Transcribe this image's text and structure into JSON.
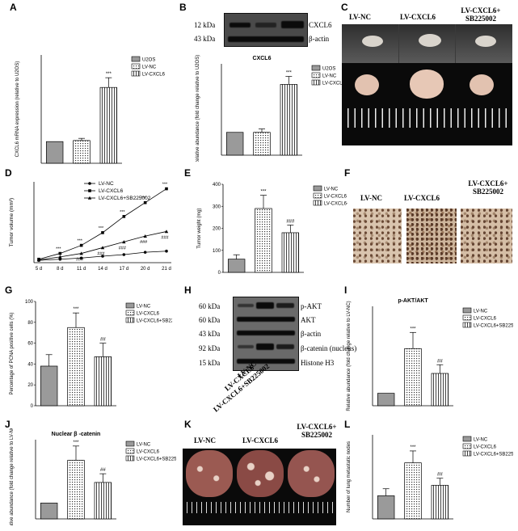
{
  "panel_letters": [
    "A",
    "B",
    "C",
    "D",
    "E",
    "F",
    "G",
    "H",
    "I",
    "J",
    "K",
    "L"
  ],
  "colors": {
    "bar_fill": "#ffffff",
    "bar_stroke": "#000000",
    "hatch": "#000000"
  },
  "legend_patterns": [
    "gray",
    "dotted",
    "vertical-lines"
  ],
  "panel_B_blot": {
    "markers": [
      "12 kDa",
      "43 kDa"
    ],
    "bands": [
      "CXCL6",
      "β-actin"
    ]
  },
  "panel_C": {
    "groups": [
      "LV-NC",
      "LV-CXCL6",
      "LV-CXCL6+ SB225002"
    ]
  },
  "panel_F": {
    "groups": [
      "LV-NC",
      "LV-CXCL6",
      "LV-CXCL6+ SB225002"
    ]
  },
  "panel_H_blot": {
    "markers": [
      "60 kDa",
      "60 kDa",
      "43 kDa",
      "92 kDa",
      "15 kDa"
    ],
    "bands": [
      "p-AKT",
      "AKT",
      "β-actin",
      "β-catenin (nucleus)",
      "Histone H3"
    ],
    "lanes": [
      "LV-NC",
      "LV-CXCL6",
      "LV-CXCL6+SB225002"
    ]
  },
  "panel_K": {
    "groups": [
      "LV-NC",
      "LV-CXCL6",
      "LV-CXCL6+ SB225002"
    ]
  },
  "chart_data": [
    {
      "panel": "A",
      "type": "bar",
      "categories": [
        "U2OS",
        "LV-NC",
        "LV-CXCL6"
      ],
      "values": [
        1.0,
        1.05,
        3.5
      ],
      "errors": [
        0,
        0.1,
        0.45
      ],
      "ylabel": "CXCL6 mRNA expression (relative to U2OS)",
      "ylim": [
        0,
        5
      ],
      "annotations": [
        "",
        "",
        "***"
      ],
      "legend": [
        "U2OS",
        "LV-NC",
        "LV-CXCL6"
      ],
      "legend_position": "top-right"
    },
    {
      "panel": "B",
      "type": "bar",
      "title": "CXCL6",
      "categories": [
        "U2OS",
        "LV-NC",
        "LV-CXCL6"
      ],
      "values": [
        1.0,
        1.0,
        3.1
      ],
      "errors": [
        0,
        0.15,
        0.35
      ],
      "ylabel": "Relative abundance (fold change relative to U2OS)",
      "ylim": [
        0,
        4
      ],
      "annotations": [
        "",
        "",
        "***"
      ],
      "legend": [
        "U2OS",
        "LV-NC",
        "LV-CXCL6"
      ],
      "legend_position": "top-right"
    },
    {
      "panel": "D",
      "type": "line",
      "x": [
        "5 d",
        "8 d",
        "11 d",
        "14 d",
        "17 d",
        "20 d",
        "21 d"
      ],
      "ylabel": "Tumor volume (mm³)",
      "ylim": [
        0,
        350
      ],
      "series": [
        {
          "name": "LV-NC",
          "values": [
            10,
            15,
            20,
            28,
            35,
            45,
            50
          ],
          "marker": "circle"
        },
        {
          "name": "LV-CXCL6",
          "values": [
            15,
            40,
            75,
            130,
            200,
            260,
            320
          ],
          "marker": "square",
          "annotations": [
            "",
            "***",
            "***",
            "***",
            "***",
            "***",
            "***"
          ]
        },
        {
          "name": "LV-CXCL6+SB225002",
          "values": [
            12,
            25,
            40,
            65,
            90,
            115,
            135
          ],
          "marker": "triangle",
          "annotations": [
            "",
            "",
            "###",
            "###",
            "###",
            "###",
            "###"
          ]
        }
      ],
      "legend_position": "top-left"
    },
    {
      "panel": "E",
      "type": "bar",
      "categories": [
        "LV-NC",
        "LV-CXCL6",
        "LV-CXCL6+SB225002"
      ],
      "values": [
        60,
        290,
        180
      ],
      "errors": [
        20,
        60,
        35
      ],
      "ylabel": "Tumor weight (mg)",
      "ylim": [
        0,
        400
      ],
      "yticks": [
        0,
        100,
        200,
        300,
        400
      ],
      "annotations": [
        "",
        "***",
        "###"
      ],
      "legend": [
        "LV-NC",
        "LV-CXCL6",
        "LV-CXCL6+SB225002"
      ],
      "legend_position": "top-right"
    },
    {
      "panel": "G",
      "type": "bar",
      "categories": [
        "LV-NC",
        "LV-CXCL6",
        "LV-CXCL6+SB225002"
      ],
      "values": [
        38,
        75,
        47
      ],
      "errors": [
        11,
        14,
        13
      ],
      "ylabel": "Percentage of PCNA positive cells (%)",
      "ylim": [
        0,
        100
      ],
      "yticks": [
        0,
        20,
        40,
        60,
        80,
        100
      ],
      "annotations": [
        "",
        "***",
        "##"
      ],
      "legend": [
        "LV-NC",
        "LV-CXCL6",
        "LV-CXCL6+SB225002"
      ],
      "legend_position": "top-right"
    },
    {
      "panel": "I",
      "type": "bar",
      "title": "p-AKT/AKT",
      "categories": [
        "LV-NC",
        "LV-CXCL6",
        "LV-CXCL6+SB225002"
      ],
      "values": [
        1.0,
        4.6,
        2.6
      ],
      "errors": [
        0,
        1.3,
        0.7
      ],
      "ylabel": "Relative abundance (fold change relative to LV-NC)",
      "ylim": [
        0,
        8
      ],
      "annotations": [
        "",
        "***",
        "##"
      ],
      "legend": [
        "LV-NC",
        "LV-CXCL6",
        "LV-CXCL6+SB225002"
      ],
      "legend_position": "top-right"
    },
    {
      "panel": "J",
      "type": "bar",
      "title": "Nuclear β -catenin",
      "categories": [
        "LV-NC",
        "LV-CXCL6",
        "LV-CXCL6+SB225002"
      ],
      "values": [
        1.0,
        3.7,
        2.3
      ],
      "errors": [
        0,
        0.9,
        0.55
      ],
      "ylabel": "Relative abundance (fold change relative to LV-NC)",
      "ylim": [
        0,
        5
      ],
      "annotations": [
        "",
        "***",
        "##"
      ],
      "legend": [
        "LV-NC",
        "LV-CXCL6",
        "LV-CXCL6+SB225002"
      ],
      "legend_position": "top-right"
    },
    {
      "panel": "L",
      "type": "bar",
      "categories": [
        "LV-NC",
        "LV-CXCL6",
        "LV-CXCL6+SB225002"
      ],
      "values": [
        33,
        80,
        48
      ],
      "errors": [
        10,
        17,
        10
      ],
      "ylabel": "Number of lung metastatic nodes",
      "ylim": [
        0,
        120
      ],
      "annotations": [
        "",
        "***",
        "##"
      ],
      "legend": [
        "LV-NC",
        "LV-CXCL6",
        "LV-CXCL6+SB225002"
      ],
      "legend_position": "top-right"
    }
  ]
}
